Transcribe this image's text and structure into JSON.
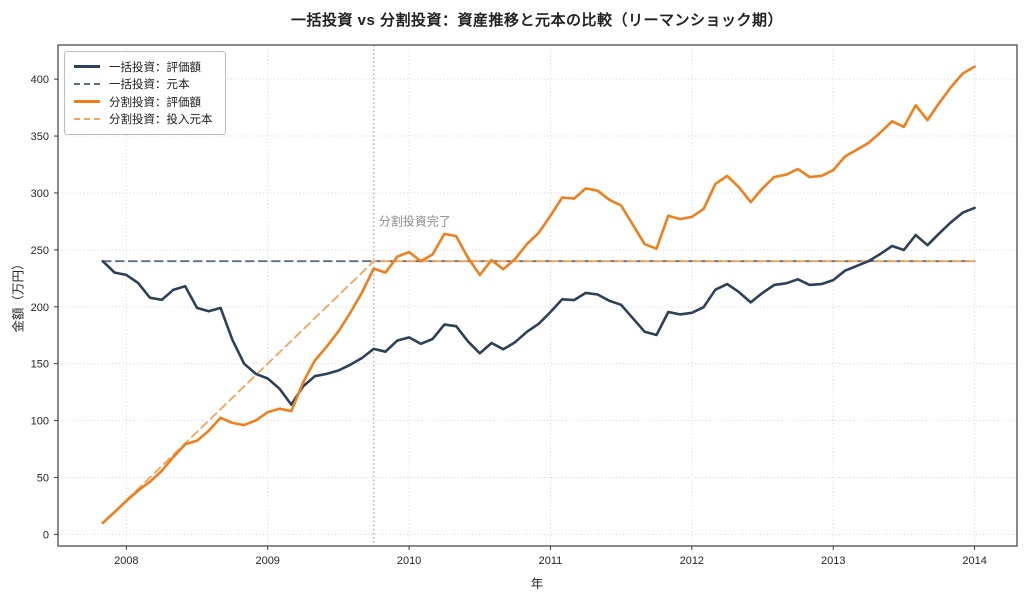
{
  "figure": {
    "background": "#ffffff"
  },
  "chart_data": {
    "type": "line",
    "title": "一括投資 vs 分割投資：資産推移と元本の比較（リーマンショック期）",
    "xlabel": "年",
    "ylabel": "金額（万円）",
    "x_tick_years": [
      "2008",
      "2009",
      "2010",
      "2011",
      "2012",
      "2013",
      "2014"
    ],
    "y_ticks": [
      0,
      50,
      100,
      150,
      200,
      250,
      300,
      350,
      400
    ],
    "xlim_months": [
      -3.8,
      77.6
    ],
    "ylim": [
      -10.2,
      430
    ],
    "grid": true,
    "legend_position": "upper-left",
    "axis_color": "#3c3c3c",
    "tick_label_color": "#262626",
    "grid_color": "#d4d4d4",
    "months": [
      "2007-11",
      "2007-12",
      "2008-01",
      "2008-02",
      "2008-03",
      "2008-04",
      "2008-05",
      "2008-06",
      "2008-07",
      "2008-08",
      "2008-09",
      "2008-10",
      "2008-11",
      "2008-12",
      "2009-01",
      "2009-02",
      "2009-03",
      "2009-04",
      "2009-05",
      "2009-06",
      "2009-07",
      "2009-08",
      "2009-09",
      "2009-10",
      "2009-11",
      "2009-12",
      "2010-01",
      "2010-02",
      "2010-03",
      "2010-04",
      "2010-05",
      "2010-06",
      "2010-07",
      "2010-08",
      "2010-09",
      "2010-10",
      "2010-11",
      "2010-12",
      "2011-01",
      "2011-02",
      "2011-03",
      "2011-04",
      "2011-05",
      "2011-06",
      "2011-07",
      "2011-08",
      "2011-09",
      "2011-10",
      "2011-11",
      "2011-12",
      "2012-01",
      "2012-02",
      "2012-03",
      "2012-04",
      "2012-05",
      "2012-06",
      "2012-07",
      "2012-08",
      "2012-09",
      "2012-10",
      "2012-11",
      "2012-12",
      "2013-01",
      "2013-02",
      "2013-03",
      "2013-04",
      "2013-05",
      "2013-06",
      "2013-07",
      "2013-08",
      "2013-09",
      "2013-10",
      "2013-11",
      "2013-12",
      "2014-01"
    ],
    "series": [
      {
        "name": "一括投資：評価額",
        "style": "solid",
        "color": "#2e4057",
        "width": 2.6,
        "values": [
          240.0,
          230.0,
          228.0,
          221.0,
          208.0,
          206.0,
          215.0,
          218.0,
          199.0,
          196.0,
          199.0,
          171.0,
          150.0,
          141.0,
          137.0,
          128.0,
          114.0,
          130.0,
          139.0,
          141.0,
          144.0,
          149.0,
          155.0,
          163.0,
          160.5,
          170.3,
          173.1,
          167.5,
          171.7,
          184.3,
          182.9,
          169.6,
          159.1,
          168.2,
          162.6,
          168.9,
          178.0,
          185.0,
          195.4,
          206.6,
          205.9,
          212.2,
          210.8,
          205.2,
          201.7,
          189.9,
          178.0,
          175.2,
          195.4,
          193.3,
          194.7,
          199.6,
          215.0,
          219.9,
          212.9,
          203.8,
          212.2,
          219.2,
          220.6,
          224.1,
          219.2,
          219.9,
          223.4,
          231.7,
          235.9,
          240.1,
          246.4,
          253.4,
          249.9,
          263.1,
          254.1,
          264.5,
          274.3,
          282.7,
          286.9
        ]
      },
      {
        "name": "一括投資：元本",
        "style": "dashed",
        "color": "#5a7089",
        "width": 1.8,
        "constant_value": 240
      },
      {
        "name": "分割投資：評価額",
        "style": "solid",
        "color": "#ee7f1d",
        "width": 2.6,
        "values": [
          10.0,
          19.6,
          29.4,
          38.5,
          46.2,
          55.8,
          68.2,
          79.2,
          82.3,
          91.1,
          102.4,
          98.0,
          96.0,
          100.2,
          107.4,
          110.4,
          108.3,
          133.5,
          152.7,
          164.9,
          178.4,
          194.6,
          212.5,
          233.5,
          230.0,
          244.0,
          248.0,
          240.0,
          246.0,
          264.0,
          262.0,
          243.0,
          228.0,
          241.0,
          233.0,
          242.0,
          255.0,
          265.0,
          280.0,
          296.0,
          295.0,
          304.0,
          302.0,
          294.0,
          289.0,
          272.0,
          255.0,
          251.0,
          280.0,
          277.0,
          279.0,
          286.0,
          308.0,
          315.0,
          305.0,
          292.0,
          304.0,
          314.0,
          316.0,
          321.0,
          314.0,
          315.0,
          320.0,
          332.0,
          338.0,
          344.0,
          353.0,
          363.0,
          358.0,
          377.0,
          364.0,
          379.0,
          393.0,
          405.0,
          411.0
        ]
      },
      {
        "name": "分割投資：投入元本",
        "style": "dashed",
        "color": "#f2a45e",
        "width": 1.8,
        "values": [
          10,
          20,
          30,
          40,
          50,
          60,
          70,
          80,
          90,
          100,
          110,
          120,
          130,
          140,
          150,
          160,
          170,
          180,
          190,
          200,
          210,
          220,
          230,
          240,
          240,
          240,
          240,
          240,
          240,
          240,
          240,
          240,
          240,
          240,
          240,
          240,
          240,
          240,
          240,
          240,
          240,
          240,
          240,
          240,
          240,
          240,
          240,
          240,
          240,
          240,
          240,
          240,
          240,
          240,
          240,
          240,
          240,
          240,
          240,
          240,
          240,
          240,
          240,
          240,
          240,
          240,
          240,
          240,
          240,
          240,
          240,
          240,
          240,
          240,
          240
        ]
      }
    ],
    "annotation": {
      "text": "分割投資完了",
      "vline_month": "2009-10",
      "text_value": 275,
      "text_color": "#8c8c8c",
      "line_color": "#a8a8a8"
    }
  }
}
